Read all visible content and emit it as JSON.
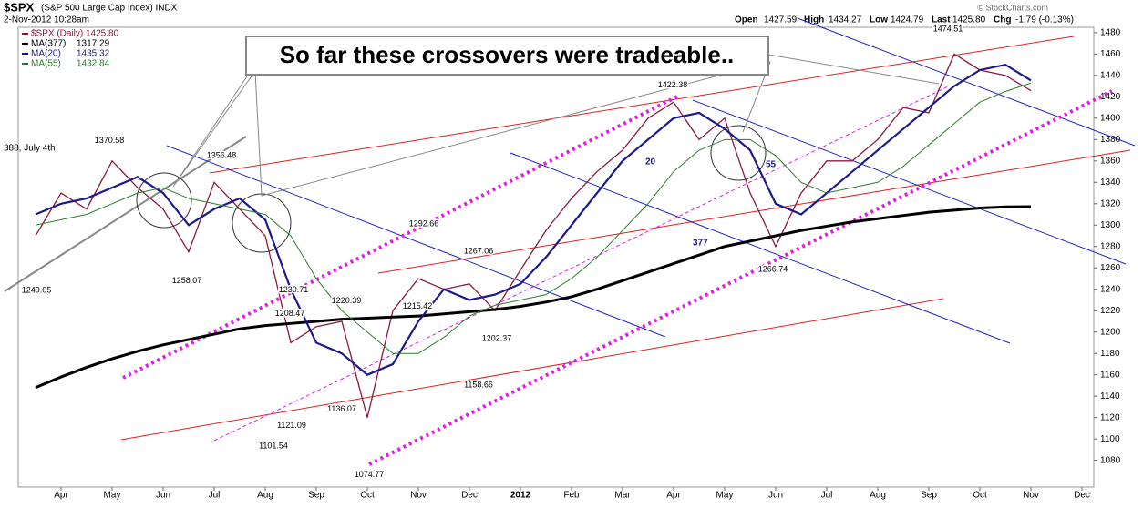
{
  "header": {
    "symbol": "$SPX",
    "name": "(S&P 500 Large Cap Index) INDX",
    "date": "2-Nov-2012 10:28am",
    "open_label": "Open",
    "open": "1427.59",
    "high_label": "High",
    "high": "1434.27",
    "low_label": "Low",
    "low": "1424.79",
    "last_label": "Last",
    "last": "1425.80",
    "chg_label": "Chg",
    "chg": "-1.79 (-0.13%)",
    "credit": "© StockCharts.com"
  },
  "callout": "So far these crossovers were tradeable..",
  "chart_data": {
    "type": "line",
    "categories": [
      null,
      "Apr",
      null,
      "May",
      null,
      "Jun",
      null,
      "Jul",
      null,
      "Aug",
      null,
      "Sep",
      null,
      "Oct",
      null,
      "Nov",
      null,
      "Dec",
      null,
      "2012",
      null,
      "Feb",
      null,
      "Mar",
      null,
      "Apr",
      null,
      "May",
      null,
      "Jun",
      null,
      "Jul",
      null,
      "Aug",
      null,
      "Sep",
      null,
      "Oct",
      null,
      "Nov",
      null,
      "Dec"
    ],
    "series": [
      {
        "name": "$SPX (Daily)",
        "last": "1425.80",
        "color": "#8b1a3a",
        "values": [
          1290,
          1330,
          1315,
          1360,
          1335,
          1315,
          1275,
          1340,
          1315,
          1290,
          1190,
          1205,
          1210,
          1120,
          1220,
          1250,
          1240,
          1245,
          1220,
          1258,
          1295,
          1325,
          1350,
          1370,
          1400,
          1415,
          1380,
          1400,
          1330,
          1280,
          1330,
          1360,
          1360,
          1380,
          1410,
          1405,
          1460,
          1445,
          1440,
          1425.8,
          null,
          null
        ]
      },
      {
        "name": "MA(377)",
        "last": "1317.29",
        "color": "#000000",
        "values": [
          1148,
          1158,
          1167,
          1175,
          1182,
          1188,
          1193,
          1198,
          1203,
          1206,
          1208,
          1210,
          1212,
          1213,
          1214,
          1215,
          1217,
          1219,
          1221,
          1224,
          1228,
          1233,
          1240,
          1248,
          1256,
          1264,
          1272,
          1280,
          1285,
          1290,
          1295,
          1299,
          1303,
          1306,
          1309,
          1312,
          1314,
          1316,
          1317,
          1317.29,
          null,
          null
        ]
      },
      {
        "name": "MA(20)",
        "last": "1435.32",
        "color": "#1a1a8c",
        "values": [
          1310,
          1320,
          1325,
          1335,
          1345,
          1330,
          1300,
          1315,
          1325,
          1305,
          1240,
          1190,
          1180,
          1160,
          1170,
          1210,
          1240,
          1230,
          1235,
          1245,
          1270,
          1300,
          1330,
          1360,
          1380,
          1400,
          1405,
          1390,
          1370,
          1320,
          1310,
          1330,
          1350,
          1370,
          1390,
          1410,
          1430,
          1445,
          1450,
          1435.32,
          null,
          null
        ]
      },
      {
        "name": "MA(55)",
        "last": "1432.84",
        "color": "#2e7d2e",
        "values": [
          1300,
          1305,
          1310,
          1320,
          1330,
          1335,
          1325,
          1320,
          1315,
          1310,
          1290,
          1250,
          1220,
          1200,
          1180,
          1180,
          1195,
          1215,
          1225,
          1230,
          1235,
          1250,
          1270,
          1295,
          1320,
          1350,
          1370,
          1380,
          1380,
          1365,
          1340,
          1330,
          1335,
          1340,
          1355,
          1375,
          1395,
          1415,
          1425,
          1432.84,
          null,
          null
        ]
      }
    ],
    "ylim": [
      1055,
      1485
    ],
    "yticks": [
      1080,
      1100,
      1120,
      1140,
      1160,
      1180,
      1200,
      1220,
      1240,
      1260,
      1280,
      1300,
      1320,
      1340,
      1360,
      1380,
      1400,
      1420,
      1440,
      1460,
      1480
    ],
    "annotations": [
      {
        "value": 1249.05,
        "label": "1249.05"
      },
      {
        "value": 1370.58,
        "label": "1370.58"
      },
      {
        "value": 1356.48,
        "label": "1356.48"
      },
      {
        "value": 1258.07,
        "label": "1258.07"
      },
      {
        "value": 1292.66,
        "label": "1292.66"
      },
      {
        "value": 1267.06,
        "label": "1267.06"
      },
      {
        "value": 1230.71,
        "label": "1230.71"
      },
      {
        "value": 1220.39,
        "label": "1220.39"
      },
      {
        "value": 1208.47,
        "label": "1208.47"
      },
      {
        "value": 1215.42,
        "label": "1215.42"
      },
      {
        "value": 1202.37,
        "label": "1202.37"
      },
      {
        "value": 1158.66,
        "label": "1158.66"
      },
      {
        "value": 1136.07,
        "label": "1136.07"
      },
      {
        "value": 1121.09,
        "label": "1121.09"
      },
      {
        "value": 1101.54,
        "label": "1101.54"
      },
      {
        "value": 1074.77,
        "label": "1074.77"
      },
      {
        "value": 1422.38,
        "label": "1422.38"
      },
      {
        "value": 1266.74,
        "label": "1266.74"
      },
      {
        "value": 1474.51,
        "label": "1474.51"
      }
    ],
    "notes": [
      "20",
      "55",
      "377",
      "388, July 4th"
    ]
  }
}
